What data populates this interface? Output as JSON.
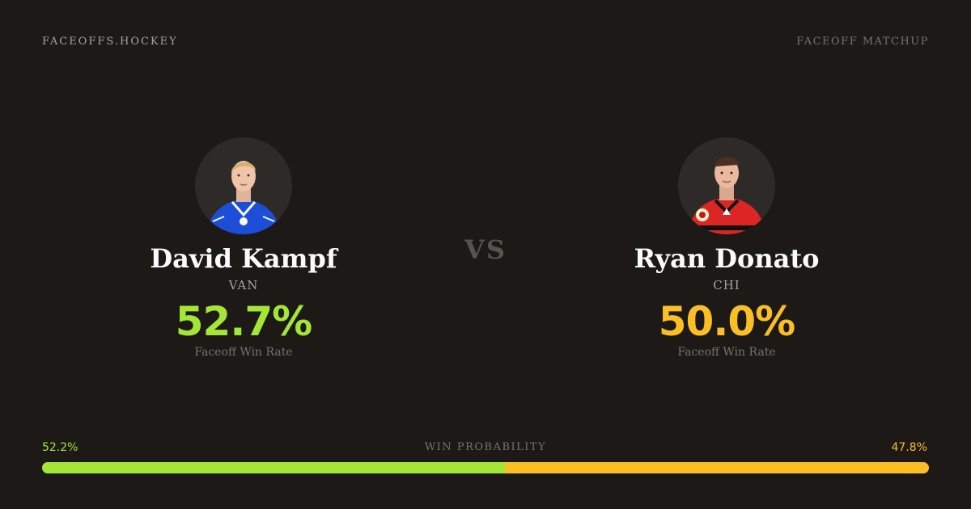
{
  "header": {
    "brand": "FACEOFFS.HOCKEY",
    "label": "FACEOFF MATCHUP"
  },
  "vs": "VS",
  "players": {
    "left": {
      "name": "David Kampf",
      "team": "VAN",
      "rate": "52.7%",
      "rate_label": "Faceoff Win Rate",
      "color": "#a3e635",
      "jersey_color": "#1d4ed8",
      "avatar_icon": "player-headshot-icon"
    },
    "right": {
      "name": "Ryan Donato",
      "team": "CHI",
      "rate": "50.0%",
      "rate_label": "Faceoff Win Rate",
      "color": "#fbbf24",
      "jersey_color": "#dc2626",
      "avatar_icon": "player-headshot-icon"
    }
  },
  "win_probability": {
    "title": "WIN PROBABILITY",
    "left_label": "52.2%",
    "right_label": "47.8%",
    "left_value": 52.2,
    "right_value": 47.8,
    "left_color": "#a3e635",
    "right_color": "#fbbf24"
  }
}
